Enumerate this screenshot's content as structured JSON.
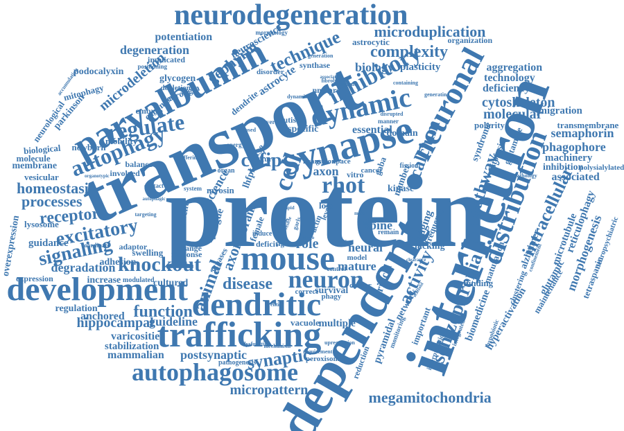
{
  "colors": {
    "word": "#3f78b0",
    "background": "#ffffff"
  },
  "words": {
    "protein": "protein",
    "transport": "transport",
    "interneuron": "interneuron",
    "dependent": "dependent",
    "neurodegeneration": "neurodegeneration",
    "parvalbumin": "parvalbumin",
    "synapse": "synapse",
    "development": "development",
    "trafficking": "trafficking",
    "dendritic": "dendritic",
    "mouse": "mouse",
    "autophagosome": "autophagosome",
    "neuronal": "neuronal",
    "distribution": "distribution",
    "dynamic": "dynamic",
    "inhibitory": "inhibitory",
    "regulate": "regulate",
    "autophagy": "autophagy",
    "neuron": "neuron",
    "knockout": "knockout",
    "excitatory": "excitatory",
    "signaling": "signaling",
    "megamitochondria": "megamitochondria",
    "schizophrenia": "schizophrenia",
    "intracellular": "intracellular",
    "technique": "technique",
    "complexity": "complexity",
    "microduplication": "microduplication",
    "homeostasis": "homeostasis",
    "processes": "processes",
    "receptor": "receptor",
    "function": "function",
    "hippocampal": "hippocampal",
    "synaptic": "synaptic",
    "micropattern": "micropattern",
    "disease": "disease",
    "animal": "animal",
    "rhot": "rhot",
    "cytoskeleton": "cytoskeleton",
    "molecular": "molecular",
    "morphogenesis": "morphogenesis",
    "phagophore": "phagophore",
    "semaphorin": "semaphorin",
    "calcium": "calcium",
    "pathway": "pathway",
    "activity": "activity",
    "gephyrin": "gephyrin",
    "microdeletion": "microdeletion",
    "degeneration": "degeneration",
    "potentiation": "potentiation",
    "biology": "biology",
    "aggregation": "aggregation",
    "technology": "technology",
    "deficiency": "deficiency",
    "migration": "migration",
    "transmembrane": "transmembrane",
    "machinery": "machinery",
    "inhibition": "inhibition",
    "polysialylated": "polysialylated",
    "associated": "associated",
    "reticulophagy": "reticulophagy",
    "microtubule": "microtubule",
    "glutamic": "glutamic",
    "tetraspanin": "tetraspanin",
    "neuropsychiatric": "neuropsychiatric",
    "alzheimer": "alzheimer",
    "maintenance": "maintenance",
    "hyperactivation": "hyperactivation",
    "biomedicine": "biomedicine",
    "pyramidal": "pyramidal",
    "mature": "mature",
    "neural": "neural",
    "spine": "spine",
    "imaging": "imaging",
    "lacking": "lacking",
    "critical": "critical",
    "guideline": "guideline",
    "varicosities": "varicosities",
    "stabilization": "stabilization",
    "mammalian": "mammalian",
    "postsynaptic": "postsynaptic",
    "anchored": "anchored",
    "regulation": "regulation",
    "degradation": "degradation",
    "adhesion": "adhesion",
    "increase": "increase",
    "cultured": "cultured",
    "expression": "expression",
    "guidance": "guidance",
    "lysosome": "lysosome",
    "overexpression": "overexpression",
    "membrane": "membrane",
    "molecule": "molecule",
    "biological": "biological",
    "vesicular": "vesicular",
    "newborn": "newborn",
    "mobility": "mobility",
    "balance": "balance",
    "involved": "involved",
    "neurological": "neurological",
    "parkinson": "parkinson",
    "mitophagy": "mitophagy",
    "podocalyxin": "podocalyxin",
    "glycogen": "glycogen",
    "neuroligin": "neuroligin",
    "canonical": "canonical",
    "embryo": "embryo",
    "depletion": "depletion",
    "dendrite": "dendrite",
    "astrocyte": "astrocyte",
    "neuroscience": "neuroscience",
    "implicated": "implicated",
    "positioning": "positioning",
    "astrocytic": "astrocytic",
    "plasticity": "plasticity",
    "organization": "organization",
    "morphology": "morphology",
    "synthase": "synthase",
    "disorder": "disorder",
    "nmdars": "nmdars",
    "science": "science",
    "myosin": "myosin",
    "cyfip": "cyfip",
    "axon": "axon",
    "essential": "essential",
    "specific": "specific",
    "domain": "domain",
    "kinase": "kinase",
    "number": "number",
    "loss": "loss",
    "role": "role",
    "cell": "cell",
    "mitofusin": "mitofusin",
    "glutamate": "glutamate",
    "polarity": "polarity",
    "syndrome": "syndrome",
    "multiple": "multiple",
    "vacuole": "vacuole",
    "survival": "survival",
    "network": "network",
    "important": "important",
    "schizo_small": "cluster",
    "frequency": "frequency",
    "binding": "binding",
    "maturation": "maturation",
    "axonal": "axonal",
    "brain": "brain",
    "sprague": "sprague",
    "current": "current",
    "swelling": "swelling",
    "change": "change",
    "response": "response",
    "deficit": "deficit",
    "agent": "agent",
    "model": "model",
    "culture": "culture",
    "autism": "autism",
    "gaba": "gaba",
    "lhfpl": "lhfpl",
    "actin": "actin",
    "ncam": "ncam",
    "reduction": "reduction",
    "peroxisome": "peroxisome",
    "correct": "correct",
    "contact": "contact",
    "adaptor": "adaptor",
    "coordinate": "coordinate",
    "modulated": "modulated",
    "system": "system",
    "female": "female",
    "energy": "energy",
    "gabon": "gabon",
    "space": "space",
    "vitro": "vitro",
    "level": "level",
    "cancer": "cancer",
    "several": "several",
    "manner": "manner",
    "generation": "generation",
    "embryonic": "embryonic",
    "fibroblast": "fibroblast",
    "association": "association",
    "generating": "generating",
    "containing": "containing",
    "gsk3b": "gsk3β",
    "fission": "fission",
    "pathology": "pathology",
    "clustering": "clustering",
    "mitochondria_small": "glial",
    "monitoring": "monitoring",
    "interpretation": "interpretation",
    "integrated": "integrated",
    "hypoinsulfitic": "hypobiotic",
    "requirement": "requirement",
    "pathogenesis": "pathogenesis",
    "phagy": "phagy",
    "upregulation": "upregulation",
    "disrupted": "disrupted",
    "remain": "remain",
    "induce": "induce",
    "matg": "matg",
    "targeting": "targeting",
    "buffering": "buffering",
    "organ": "organ",
    "opposed": "opposed",
    "autophagic": "autophagic",
    "accumulation": "accumulation",
    "organotypic": "organotypic",
    "mechanism": "mechanism",
    "dysfunction": "dysfunction",
    "gtpases": "gtpases",
    "control": "control",
    "distinct": "distinct",
    "confinement": "confinement",
    "entity": "entity",
    "dynamics": "dynamics",
    "lipid": "lipid",
    "vesicle": "vesicle",
    "clearance": "clearance",
    "scaffold": "scaffold",
    "cargo": "cargo",
    "motor": "motor",
    "garls": "garls"
  }
}
